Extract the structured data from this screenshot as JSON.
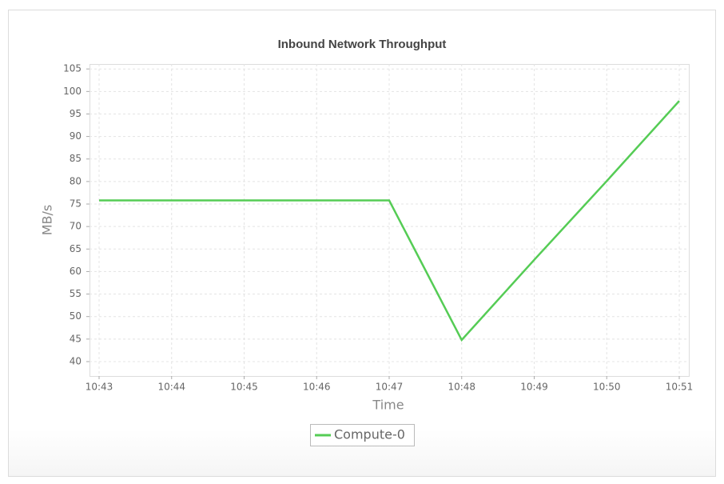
{
  "chart_data": {
    "type": "line",
    "title": "Inbound Network Throughput",
    "x_label": "Time",
    "y_label": "MB/s",
    "categories": [
      "10:43",
      "10:44",
      "10:45",
      "10:46",
      "10:47",
      "10:48",
      "10:49",
      "10:50",
      "10:51"
    ],
    "series": [
      {
        "name": "Compute-0",
        "color": "#55cc55",
        "values": [
          75.8,
          75.8,
          75.8,
          75.8,
          75.8,
          44.8,
          62.6,
          80.1,
          97.9
        ]
      }
    ],
    "ylim": [
      36.8,
      106.1
    ],
    "yticks": [
      40,
      45,
      50,
      55,
      60,
      65,
      70,
      75,
      80,
      85,
      90,
      95,
      100,
      105
    ],
    "grid": true,
    "legend": "bottom"
  }
}
